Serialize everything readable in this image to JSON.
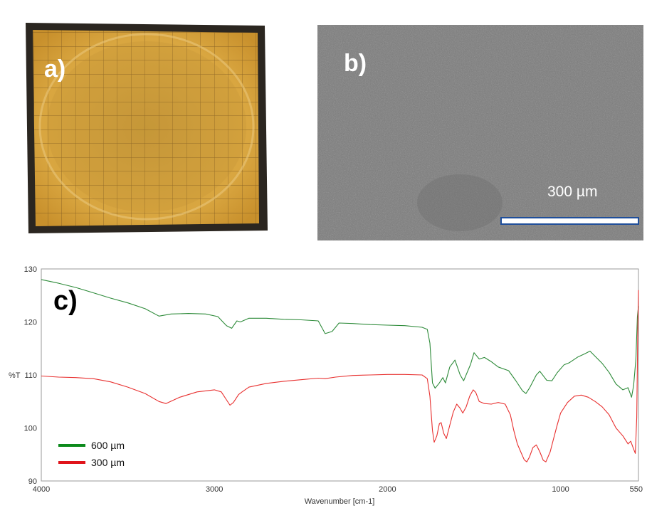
{
  "panels": {
    "a": {
      "label": "a)"
    },
    "b": {
      "label": "b)",
      "scale_bar_text": "300 µm"
    },
    "c": {
      "label": "c)"
    }
  },
  "colors": {
    "series_600": "#2e8b3a",
    "series_300": "#e8302f",
    "legend_600": "#0c8a1c",
    "legend_300": "#e0141b",
    "film": "#d69f35",
    "sem_gray": "#7b7b7b"
  },
  "chart_data": {
    "type": "line",
    "xlabel": "Wavenumber [cm-1]",
    "ylabel": "%T",
    "xlim": [
      4000,
      550
    ],
    "ylim": [
      90,
      130
    ],
    "x_reversed": true,
    "xticks": [
      4000,
      3000,
      2000,
      1000,
      550
    ],
    "yticks": [
      90,
      100,
      110,
      120,
      130
    ],
    "legend_placement": "bottom-left",
    "grid": false,
    "series": [
      {
        "name": "600 µm",
        "points": [
          [
            4000,
            128.0
          ],
          [
            3900,
            127.3
          ],
          [
            3800,
            126.5
          ],
          [
            3700,
            125.5
          ],
          [
            3600,
            124.5
          ],
          [
            3500,
            123.6
          ],
          [
            3400,
            122.5
          ],
          [
            3320,
            121.1
          ],
          [
            3250,
            121.5
          ],
          [
            3150,
            121.6
          ],
          [
            3050,
            121.5
          ],
          [
            2980,
            121.0
          ],
          [
            2930,
            119.3
          ],
          [
            2900,
            118.8
          ],
          [
            2870,
            120.2
          ],
          [
            2850,
            120.0
          ],
          [
            2800,
            120.7
          ],
          [
            2700,
            120.7
          ],
          [
            2600,
            120.5
          ],
          [
            2500,
            120.4
          ],
          [
            2400,
            120.2
          ],
          [
            2360,
            117.8
          ],
          [
            2320,
            118.2
          ],
          [
            2280,
            119.8
          ],
          [
            2200,
            119.7
          ],
          [
            2100,
            119.5
          ],
          [
            2000,
            119.4
          ],
          [
            1900,
            119.3
          ],
          [
            1800,
            119.0
          ],
          [
            1770,
            118.6
          ],
          [
            1755,
            116.0
          ],
          [
            1740,
            108.5
          ],
          [
            1725,
            107.5
          ],
          [
            1700,
            108.5
          ],
          [
            1680,
            109.5
          ],
          [
            1665,
            108.5
          ],
          [
            1640,
            111.5
          ],
          [
            1610,
            112.8
          ],
          [
            1580,
            110.0
          ],
          [
            1560,
            108.9
          ],
          [
            1520,
            112.0
          ],
          [
            1500,
            114.2
          ],
          [
            1470,
            113.0
          ],
          [
            1440,
            113.3
          ],
          [
            1400,
            112.5
          ],
          [
            1360,
            111.5
          ],
          [
            1300,
            110.8
          ],
          [
            1260,
            109.0
          ],
          [
            1220,
            107.0
          ],
          [
            1200,
            106.5
          ],
          [
            1180,
            107.5
          ],
          [
            1140,
            110.0
          ],
          [
            1120,
            110.7
          ],
          [
            1080,
            109.0
          ],
          [
            1050,
            108.9
          ],
          [
            1020,
            110.4
          ],
          [
            980,
            111.9
          ],
          [
            950,
            112.3
          ],
          [
            900,
            113.4
          ],
          [
            860,
            114.0
          ],
          [
            830,
            114.5
          ],
          [
            800,
            113.5
          ],
          [
            760,
            112.2
          ],
          [
            720,
            110.5
          ],
          [
            680,
            108.3
          ],
          [
            640,
            107.2
          ],
          [
            610,
            107.6
          ],
          [
            590,
            105.8
          ],
          [
            578,
            108.0
          ],
          [
            565,
            113.0
          ],
          [
            556,
            121.0
          ],
          [
            550,
            123.0
          ]
        ]
      },
      {
        "name": "300 µm",
        "points": [
          [
            4000,
            109.8
          ],
          [
            3900,
            109.6
          ],
          [
            3800,
            109.5
          ],
          [
            3700,
            109.3
          ],
          [
            3600,
            108.7
          ],
          [
            3500,
            107.7
          ],
          [
            3400,
            106.5
          ],
          [
            3320,
            105.0
          ],
          [
            3280,
            104.6
          ],
          [
            3200,
            105.8
          ],
          [
            3100,
            106.8
          ],
          [
            3000,
            107.2
          ],
          [
            2960,
            106.8
          ],
          [
            2930,
            105.3
          ],
          [
            2910,
            104.3
          ],
          [
            2890,
            104.8
          ],
          [
            2860,
            106.3
          ],
          [
            2840,
            106.8
          ],
          [
            2800,
            107.7
          ],
          [
            2700,
            108.4
          ],
          [
            2600,
            108.8
          ],
          [
            2500,
            109.1
          ],
          [
            2400,
            109.4
          ],
          [
            2360,
            109.3
          ],
          [
            2300,
            109.6
          ],
          [
            2200,
            109.9
          ],
          [
            2100,
            110.0
          ],
          [
            2000,
            110.1
          ],
          [
            1900,
            110.1
          ],
          [
            1800,
            110.0
          ],
          [
            1770,
            109.3
          ],
          [
            1755,
            106.0
          ],
          [
            1740,
            99.5
          ],
          [
            1730,
            97.3
          ],
          [
            1715,
            98.5
          ],
          [
            1700,
            100.8
          ],
          [
            1690,
            101.0
          ],
          [
            1675,
            99.0
          ],
          [
            1660,
            98.0
          ],
          [
            1640,
            100.5
          ],
          [
            1620,
            103.0
          ],
          [
            1600,
            104.5
          ],
          [
            1580,
            103.7
          ],
          [
            1565,
            102.8
          ],
          [
            1545,
            104.0
          ],
          [
            1525,
            106.0
          ],
          [
            1505,
            107.2
          ],
          [
            1490,
            106.7
          ],
          [
            1470,
            105.0
          ],
          [
            1440,
            104.6
          ],
          [
            1400,
            104.5
          ],
          [
            1360,
            104.8
          ],
          [
            1320,
            104.5
          ],
          [
            1290,
            102.5
          ],
          [
            1270,
            99.5
          ],
          [
            1250,
            97.0
          ],
          [
            1230,
            95.5
          ],
          [
            1210,
            94.0
          ],
          [
            1195,
            93.6
          ],
          [
            1180,
            94.5
          ],
          [
            1160,
            96.3
          ],
          [
            1140,
            96.8
          ],
          [
            1120,
            95.5
          ],
          [
            1100,
            93.9
          ],
          [
            1085,
            93.6
          ],
          [
            1060,
            95.5
          ],
          [
            1040,
            98.0
          ],
          [
            1020,
            100.5
          ],
          [
            1000,
            102.8
          ],
          [
            960,
            104.8
          ],
          [
            920,
            106.0
          ],
          [
            880,
            106.2
          ],
          [
            840,
            105.8
          ],
          [
            800,
            105.0
          ],
          [
            760,
            104.0
          ],
          [
            720,
            102.5
          ],
          [
            680,
            100.0
          ],
          [
            640,
            98.5
          ],
          [
            610,
            97.0
          ],
          [
            595,
            97.5
          ],
          [
            580,
            96.2
          ],
          [
            568,
            95.2
          ],
          [
            560,
            102.0
          ],
          [
            554,
            118.0
          ],
          [
            550,
            126.0
          ]
        ]
      }
    ]
  }
}
